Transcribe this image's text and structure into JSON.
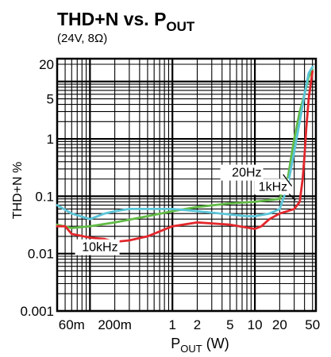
{
  "chart_data": {
    "type": "line",
    "title": {
      "prefix": "THD+N vs. P",
      "subscript": "OUT"
    },
    "subtitle": "(24V, 8Ω)",
    "xlabel": {
      "prefix": "P",
      "subscript": "OUT",
      "suffix": " (W)"
    },
    "ylabel": "THD+N %",
    "x_scale": "log",
    "y_scale": "log",
    "xlim": [
      0.04,
      55
    ],
    "ylim": [
      0.001,
      25
    ],
    "grid": true,
    "x_ticks": [
      {
        "value": 0.06,
        "label": "60m"
      },
      {
        "value": 0.2,
        "label": "200m"
      },
      {
        "value": 1,
        "label": "1"
      },
      {
        "value": 2,
        "label": "2"
      },
      {
        "value": 5,
        "label": "5"
      },
      {
        "value": 10,
        "label": "10"
      },
      {
        "value": 20,
        "label": "20"
      },
      {
        "value": 50,
        "label": "50"
      }
    ],
    "y_ticks": [
      {
        "value": 0.001,
        "label": "0.001"
      },
      {
        "value": 0.01,
        "label": "0.01"
      },
      {
        "value": 0.1,
        "label": "0.1"
      },
      {
        "value": 1,
        "label": "1"
      },
      {
        "value": 5,
        "label": "5"
      },
      {
        "value": 20,
        "label": "20"
      }
    ],
    "series": [
      {
        "name": "20Hz",
        "color": "#62bb46",
        "x": [
          0.04,
          0.06,
          0.1,
          0.2,
          0.5,
          1,
          2,
          5,
          10,
          20,
          25,
          30,
          35,
          40,
          45,
          50
        ],
        "y": [
          0.032,
          0.028,
          0.03,
          0.035,
          0.045,
          0.055,
          0.065,
          0.075,
          0.08,
          0.09,
          0.2,
          1,
          3,
          6,
          12,
          16
        ]
      },
      {
        "name": "1kHz",
        "color": "#5bc5d8",
        "x": [
          0.04,
          0.06,
          0.1,
          0.15,
          0.2,
          0.3,
          0.5,
          1,
          2,
          5,
          8,
          10,
          15,
          20,
          25,
          30,
          35,
          40,
          45,
          50
        ],
        "y": [
          0.07,
          0.05,
          0.04,
          0.05,
          0.055,
          0.06,
          0.06,
          0.06,
          0.055,
          0.048,
          0.045,
          0.045,
          0.05,
          0.06,
          0.15,
          0.6,
          2,
          6,
          14,
          18
        ]
      },
      {
        "name": "10kHz",
        "color": "#e2262b",
        "x": [
          0.04,
          0.05,
          0.06,
          0.1,
          0.15,
          0.2,
          0.3,
          0.5,
          1,
          2,
          5,
          10,
          12,
          15,
          20,
          30,
          35,
          38,
          40,
          42,
          45,
          50
        ],
        "y": [
          0.03,
          0.03,
          0.022,
          0.019,
          0.018,
          0.016,
          0.017,
          0.02,
          0.03,
          0.035,
          0.032,
          0.027,
          0.03,
          0.04,
          0.05,
          0.06,
          0.08,
          0.2,
          0.5,
          1.5,
          5,
          15
        ]
      }
    ]
  }
}
